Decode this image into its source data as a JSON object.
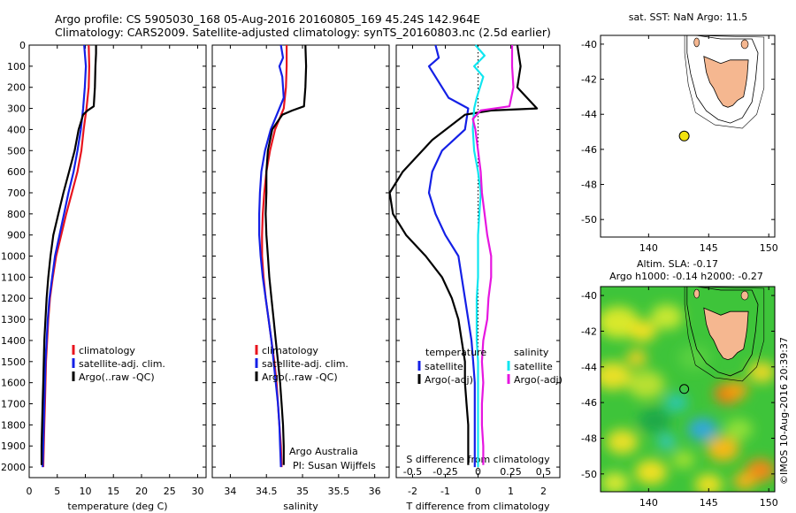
{
  "header": {
    "line1": "Argo profile: CS 5905030_168 05-Aug-2016 20160805_169 45.24S 142.964E",
    "line2": "Climatology: CARS2009. Satellite-adjusted climatology: synTS_20160803.nc (2.5d earlier)"
  },
  "side_text": "©IMOS 10-Aug-2016 20:39:37",
  "colors": {
    "climatology": "#e8141e",
    "satellite": "#1420e6",
    "argo": "#000000",
    "satellite_salinity": "#10e6f0",
    "argo_salinity": "#e616e0",
    "land": "#f5b790",
    "float_marker": "#f2e20f"
  },
  "chart_data": [
    {
      "type": "line",
      "panel": "temperature",
      "xlabel": "temperature (deg C)",
      "xlim": [
        0,
        31.5
      ],
      "xticks": [
        "0",
        "5",
        "10",
        "15",
        "20",
        "25",
        "30"
      ],
      "ylim": [
        0,
        2050
      ],
      "yticks": [
        "0",
        "100",
        "200",
        "300",
        "400",
        "500",
        "600",
        "700",
        "800",
        "900",
        "1000",
        "1100",
        "1200",
        "1300",
        "1400",
        "1500",
        "1600",
        "1700",
        "1800",
        "1900",
        "2000"
      ],
      "legend": [
        "climatology",
        "satellite-adj. clim.",
        "Argo(..raw -QC)"
      ],
      "series": [
        {
          "name": "climatology",
          "color": "#e8141e",
          "points": [
            [
              10.6,
              0
            ],
            [
              10.7,
              100
            ],
            [
              10.6,
              200
            ],
            [
              10.2,
              300
            ],
            [
              9.7,
              400
            ],
            [
              9.3,
              500
            ],
            [
              8.6,
              600
            ],
            [
              7.6,
              700
            ],
            [
              6.6,
              800
            ],
            [
              5.7,
              900
            ],
            [
              4.8,
              1000
            ],
            [
              4.2,
              1100
            ],
            [
              3.7,
              1200
            ],
            [
              3.4,
              1300
            ],
            [
              3.2,
              1400
            ],
            [
              3.0,
              1500
            ],
            [
              2.9,
              1600
            ],
            [
              2.8,
              1700
            ],
            [
              2.7,
              1800
            ],
            [
              2.6,
              1900
            ],
            [
              2.5,
              2000
            ]
          ]
        },
        {
          "name": "satellite-adj. clim.",
          "color": "#1420e6",
          "points": [
            [
              9.8,
              0
            ],
            [
              10.1,
              100
            ],
            [
              9.9,
              200
            ],
            [
              9.6,
              300
            ],
            [
              9.2,
              400
            ],
            [
              8.6,
              500
            ],
            [
              7.9,
              600
            ],
            [
              7.0,
              700
            ],
            [
              6.2,
              800
            ],
            [
              5.4,
              900
            ],
            [
              4.6,
              1000
            ],
            [
              4.1,
              1100
            ],
            [
              3.6,
              1200
            ],
            [
              3.3,
              1300
            ],
            [
              3.1,
              1400
            ],
            [
              2.9,
              1500
            ],
            [
              2.8,
              1600
            ],
            [
              2.7,
              1700
            ],
            [
              2.6,
              1800
            ],
            [
              2.5,
              1900
            ],
            [
              2.4,
              2000
            ]
          ]
        },
        {
          "name": "Argo(..raw -QC)",
          "color": "#000000",
          "points": [
            [
              11.9,
              0
            ],
            [
              11.9,
              40
            ],
            [
              11.8,
              100
            ],
            [
              11.7,
              200
            ],
            [
              11.5,
              290
            ],
            [
              10.4,
              310
            ],
            [
              9.6,
              330
            ],
            [
              8.8,
              400
            ],
            [
              8.1,
              500
            ],
            [
              7.1,
              600
            ],
            [
              6.1,
              700
            ],
            [
              5.2,
              800
            ],
            [
              4.3,
              900
            ],
            [
              3.8,
              1000
            ],
            [
              3.4,
              1100
            ],
            [
              3.1,
              1200
            ],
            [
              2.9,
              1300
            ],
            [
              2.7,
              1400
            ],
            [
              2.6,
              1500
            ],
            [
              2.5,
              1600
            ],
            [
              2.4,
              1700
            ],
            [
              2.3,
              1800
            ],
            [
              2.2,
              1900
            ],
            [
              2.2,
              1990
            ]
          ]
        }
      ]
    },
    {
      "type": "line",
      "panel": "salinity",
      "xlabel": "salinity",
      "xlim": [
        33.75,
        36.2
      ],
      "xticks": [
        "34",
        "34.5",
        "35",
        "35.5",
        "36"
      ],
      "ylim": [
        0,
        2050
      ],
      "legend": [
        "climatology",
        "satellite-adj. clim.",
        "Argo(..raw -QC)"
      ],
      "annotation": [
        "Argo Australia",
        "PI: Susan Wijffels"
      ],
      "series": [
        {
          "name": "climatology",
          "color": "#e8141e",
          "points": [
            [
              34.78,
              0
            ],
            [
              34.78,
              100
            ],
            [
              34.77,
              200
            ],
            [
              34.74,
              300
            ],
            [
              34.62,
              400
            ],
            [
              34.55,
              500
            ],
            [
              34.5,
              600
            ],
            [
              34.47,
              700
            ],
            [
              34.45,
              800
            ],
            [
              34.44,
              900
            ],
            [
              34.44,
              1000
            ],
            [
              34.46,
              1100
            ],
            [
              34.49,
              1200
            ],
            [
              34.53,
              1300
            ],
            [
              34.57,
              1400
            ],
            [
              34.61,
              1500
            ],
            [
              34.64,
              1600
            ],
            [
              34.66,
              1700
            ],
            [
              34.68,
              1800
            ],
            [
              34.7,
              1900
            ],
            [
              34.71,
              2000
            ]
          ]
        },
        {
          "name": "satellite-adj. clim.",
          "color": "#1420e6",
          "points": [
            [
              34.7,
              0
            ],
            [
              34.73,
              60
            ],
            [
              34.68,
              100
            ],
            [
              34.72,
              150
            ],
            [
              34.74,
              250
            ],
            [
              34.68,
              300
            ],
            [
              34.56,
              400
            ],
            [
              34.48,
              500
            ],
            [
              34.43,
              600
            ],
            [
              34.41,
              700
            ],
            [
              34.4,
              800
            ],
            [
              34.4,
              900
            ],
            [
              34.42,
              1000
            ],
            [
              34.45,
              1100
            ],
            [
              34.49,
              1200
            ],
            [
              34.53,
              1300
            ],
            [
              34.57,
              1400
            ],
            [
              34.6,
              1500
            ],
            [
              34.63,
              1600
            ],
            [
              34.66,
              1700
            ],
            [
              34.68,
              1800
            ],
            [
              34.69,
              1900
            ],
            [
              34.7,
              2000
            ]
          ]
        },
        {
          "name": "Argo(..raw -QC)",
          "color": "#000000",
          "points": [
            [
              35.04,
              0
            ],
            [
              35.05,
              100
            ],
            [
              35.04,
              200
            ],
            [
              35.02,
              290
            ],
            [
              34.86,
              310
            ],
            [
              34.72,
              330
            ],
            [
              34.58,
              400
            ],
            [
              34.52,
              500
            ],
            [
              34.5,
              600
            ],
            [
              34.5,
              700
            ],
            [
              34.49,
              800
            ],
            [
              34.5,
              900
            ],
            [
              34.52,
              1000
            ],
            [
              34.54,
              1100
            ],
            [
              34.57,
              1200
            ],
            [
              34.6,
              1300
            ],
            [
              34.63,
              1400
            ],
            [
              34.66,
              1500
            ],
            [
              34.69,
              1600
            ],
            [
              34.71,
              1700
            ],
            [
              34.73,
              1800
            ],
            [
              34.74,
              1900
            ],
            [
              34.74,
              1990
            ]
          ]
        }
      ]
    },
    {
      "type": "line",
      "panel": "difference",
      "xlabel": "T difference from climatology",
      "xlabel2": "S difference from climatology",
      "xlim": [
        -2.5,
        2.5
      ],
      "xticks": [
        "-2",
        "-1",
        "0",
        "1",
        "2"
      ],
      "xticks2": [
        "-0.5",
        "-0.25",
        "0",
        "0.25",
        "0.5"
      ],
      "ylim": [
        0,
        2050
      ],
      "legend": {
        "temperature_title": "temperature",
        "salinity_title": "salinity",
        "entries": [
          "satellite",
          "Argo(-adj)",
          "satellite",
          "Argo(-adj)"
        ]
      },
      "series": [
        {
          "name": "satellite",
          "color": "#1420e6",
          "points": [
            [
              -1.3,
              0
            ],
            [
              -1.2,
              60
            ],
            [
              -1.5,
              100
            ],
            [
              -1.3,
              150
            ],
            [
              -0.9,
              250
            ],
            [
              -0.3,
              300
            ],
            [
              -0.4,
              400
            ],
            [
              -1.1,
              500
            ],
            [
              -1.4,
              600
            ],
            [
              -1.5,
              700
            ],
            [
              -1.3,
              800
            ],
            [
              -1.0,
              900
            ],
            [
              -0.6,
              1000
            ],
            [
              -0.5,
              1100
            ],
            [
              -0.4,
              1200
            ],
            [
              -0.3,
              1300
            ],
            [
              -0.2,
              1400
            ],
            [
              -0.15,
              1500
            ],
            [
              -0.1,
              1600
            ],
            [
              -0.1,
              1700
            ],
            [
              -0.1,
              1800
            ],
            [
              -0.1,
              1900
            ],
            [
              -0.1,
              2000
            ]
          ]
        },
        {
          "name": "Argo(-adj)",
          "color": "#000000",
          "points": [
            [
              1.2,
              0
            ],
            [
              1.3,
              100
            ],
            [
              1.2,
              200
            ],
            [
              1.8,
              300
            ],
            [
              0.4,
              310
            ],
            [
              -0.4,
              330
            ],
            [
              -1.4,
              450
            ],
            [
              -2.3,
              600
            ],
            [
              -2.7,
              700
            ],
            [
              -2.6,
              800
            ],
            [
              -2.2,
              900
            ],
            [
              -1.6,
              1000
            ],
            [
              -1.1,
              1100
            ],
            [
              -0.8,
              1200
            ],
            [
              -0.6,
              1300
            ],
            [
              -0.5,
              1400
            ],
            [
              -0.4,
              1500
            ],
            [
              -0.4,
              1600
            ],
            [
              -0.35,
              1700
            ],
            [
              -0.3,
              1800
            ],
            [
              -0.3,
              1900
            ],
            [
              -0.3,
              1990
            ]
          ]
        },
        {
          "name": "satellite",
          "color": "#10e6f0",
          "points": [
            [
              -0.02,
              0
            ],
            [
              0.05,
              50
            ],
            [
              -0.03,
              100
            ],
            [
              0.04,
              150
            ],
            [
              -0.01,
              250
            ],
            [
              -0.03,
              300
            ],
            [
              -0.04,
              400
            ],
            [
              -0.03,
              500
            ],
            [
              0.0,
              600
            ],
            [
              0.02,
              700
            ],
            [
              0.01,
              800
            ],
            [
              0.0,
              900
            ],
            [
              0.0,
              1000
            ],
            [
              0.0,
              1100
            ],
            [
              -0.01,
              1200
            ],
            [
              -0.01,
              1300
            ],
            [
              -0.01,
              1400
            ],
            [
              0.0,
              1500
            ],
            [
              0.0,
              1600
            ],
            [
              0.0,
              1700
            ],
            [
              0.0,
              1800
            ],
            [
              0.0,
              1900
            ],
            [
              0.0,
              2000
            ]
          ]
        },
        {
          "name": "Argo(-adj)",
          "color": "#e616e0",
          "points": [
            [
              0.26,
              0
            ],
            [
              0.26,
              100
            ],
            [
              0.27,
              200
            ],
            [
              0.24,
              290
            ],
            [
              0.02,
              310
            ],
            [
              -0.04,
              350
            ],
            [
              -0.02,
              400
            ],
            [
              0.0,
              500
            ],
            [
              0.02,
              600
            ],
            [
              0.03,
              700
            ],
            [
              0.05,
              800
            ],
            [
              0.07,
              900
            ],
            [
              0.1,
              1000
            ],
            [
              0.1,
              1100
            ],
            [
              0.08,
              1200
            ],
            [
              0.07,
              1300
            ],
            [
              0.04,
              1400
            ],
            [
              0.03,
              1500
            ],
            [
              0.04,
              1600
            ],
            [
              0.03,
              1700
            ],
            [
              0.03,
              1800
            ],
            [
              0.04,
              1900
            ],
            [
              0.04,
              1990
            ]
          ]
        }
      ]
    },
    {
      "type": "map",
      "panel": "sst",
      "title": "sat. SST: NaN Argo: 11.5",
      "xlim": [
        136,
        150.5
      ],
      "ylim": [
        -51,
        -39.5
      ],
      "xticks": [
        "140",
        "145",
        "150"
      ],
      "yticks": [
        "-40",
        "-42",
        "-44",
        "-46",
        "-48",
        "-50"
      ],
      "float_position": [
        142.964,
        -45.24
      ]
    },
    {
      "type": "heatmap",
      "panel": "sla",
      "title": "Altim. SLA: -0.17",
      "subtitle": "Argo h1000: -0.14 h2000: -0.27",
      "xlim": [
        136,
        150.5
      ],
      "ylim": [
        -51,
        -39.5
      ],
      "xticks": [
        "140",
        "145",
        "150"
      ],
      "yticks": [
        "-40",
        "-42",
        "-44",
        "-46",
        "-48",
        "-50"
      ],
      "float_position": [
        142.964,
        -45.24
      ]
    }
  ]
}
